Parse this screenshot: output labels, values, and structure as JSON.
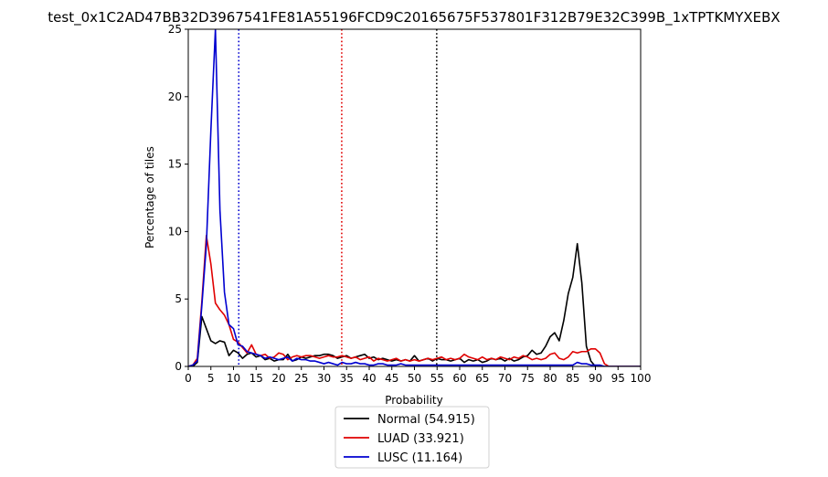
{
  "chart_data": {
    "type": "line",
    "title": "test_0x1C2AD47BB32D3967541FE81A55196FCD9C20165675F537801F312B79E32C399B_1xTPTKMYXEBX",
    "xlabel": "Probability",
    "ylabel": "Percentage of tiles",
    "xlim": [
      0,
      100
    ],
    "ylim": [
      0,
      25
    ],
    "xticks": [
      0,
      5,
      10,
      15,
      20,
      25,
      30,
      35,
      40,
      45,
      50,
      55,
      60,
      65,
      70,
      75,
      80,
      85,
      90,
      95,
      100
    ],
    "yticks": [
      0,
      5,
      10,
      15,
      20,
      25
    ],
    "grid": false,
    "legend_position": "bottom-center-outside",
    "series": [
      {
        "name": "Normal (54.915)",
        "color": "#000000",
        "x": [
          0,
          1,
          2,
          3,
          4,
          5,
          6,
          7,
          8,
          9,
          10,
          11,
          12,
          13,
          14,
          15,
          16,
          17,
          18,
          19,
          20,
          21,
          22,
          23,
          24,
          25,
          26,
          27,
          28,
          29,
          30,
          31,
          32,
          33,
          34,
          35,
          36,
          37,
          38,
          39,
          40,
          41,
          42,
          43,
          44,
          45,
          46,
          47,
          48,
          49,
          50,
          51,
          52,
          53,
          54,
          55,
          56,
          57,
          58,
          59,
          60,
          61,
          62,
          63,
          64,
          65,
          66,
          67,
          68,
          69,
          70,
          71,
          72,
          73,
          74,
          75,
          76,
          77,
          78,
          79,
          80,
          81,
          82,
          83,
          84,
          85,
          86,
          87,
          88,
          89,
          90,
          91,
          92,
          93,
          94,
          95,
          96,
          97,
          98,
          99,
          100
        ],
        "y": [
          0,
          0,
          0.3,
          3.7,
          2.8,
          1.9,
          1.7,
          1.9,
          1.8,
          0.8,
          1.2,
          1.0,
          0.6,
          0.9,
          1.0,
          0.7,
          0.8,
          0.5,
          0.6,
          0.4,
          0.5,
          0.5,
          0.9,
          0.4,
          0.5,
          0.7,
          0.6,
          0.7,
          0.8,
          0.8,
          0.9,
          0.9,
          0.8,
          0.6,
          0.7,
          0.8,
          0.6,
          0.7,
          0.8,
          0.9,
          0.6,
          0.7,
          0.5,
          0.6,
          0.5,
          0.4,
          0.5,
          0.4,
          0.5,
          0.4,
          0.8,
          0.4,
          0.5,
          0.6,
          0.4,
          0.6,
          0.5,
          0.5,
          0.4,
          0.5,
          0.6,
          0.3,
          0.5,
          0.4,
          0.5,
          0.3,
          0.4,
          0.6,
          0.5,
          0.6,
          0.4,
          0.6,
          0.4,
          0.5,
          0.7,
          0.8,
          1.2,
          0.9,
          1.0,
          1.5,
          2.2,
          2.5,
          1.9,
          3.4,
          5.4,
          6.6,
          9.1,
          6.2,
          1.5,
          0.4,
          0,
          0,
          0,
          0,
          0,
          0,
          0,
          0,
          0,
          0,
          0
        ]
      },
      {
        "name": "LUAD (33.921)",
        "color": "#e00000",
        "x": [
          0,
          1,
          2,
          3,
          4,
          5,
          6,
          7,
          8,
          9,
          10,
          11,
          12,
          13,
          14,
          15,
          16,
          17,
          18,
          19,
          20,
          21,
          22,
          23,
          24,
          25,
          26,
          27,
          28,
          29,
          30,
          31,
          32,
          33,
          34,
          35,
          36,
          37,
          38,
          39,
          40,
          41,
          42,
          43,
          44,
          45,
          46,
          47,
          48,
          49,
          50,
          51,
          52,
          53,
          54,
          55,
          56,
          57,
          58,
          59,
          60,
          61,
          62,
          63,
          64,
          65,
          66,
          67,
          68,
          69,
          70,
          71,
          72,
          73,
          74,
          75,
          76,
          77,
          78,
          79,
          80,
          81,
          82,
          83,
          84,
          85,
          86,
          87,
          88,
          89,
          90,
          91,
          92,
          93,
          94,
          95,
          96,
          97,
          98,
          99,
          100
        ],
        "y": [
          0,
          0.1,
          0.6,
          4.8,
          9.7,
          7.6,
          4.7,
          4.2,
          3.8,
          3.1,
          2.0,
          1.8,
          1.4,
          1.0,
          1.6,
          0.9,
          0.8,
          0.9,
          0.6,
          0.7,
          1.0,
          0.9,
          0.5,
          0.7,
          0.8,
          0.7,
          0.8,
          0.8,
          0.7,
          0.6,
          0.7,
          0.8,
          0.7,
          0.7,
          0.8,
          0.7,
          0.6,
          0.7,
          0.5,
          0.6,
          0.7,
          0.4,
          0.6,
          0.5,
          0.4,
          0.5,
          0.6,
          0.4,
          0.5,
          0.4,
          0.5,
          0.4,
          0.5,
          0.6,
          0.5,
          0.6,
          0.7,
          0.5,
          0.6,
          0.5,
          0.6,
          0.9,
          0.7,
          0.6,
          0.5,
          0.7,
          0.5,
          0.6,
          0.5,
          0.7,
          0.6,
          0.5,
          0.7,
          0.6,
          0.8,
          0.7,
          0.5,
          0.6,
          0.5,
          0.6,
          0.9,
          1.0,
          0.6,
          0.5,
          0.7,
          1.1,
          1.0,
          1.1,
          1.1,
          1.3,
          1.3,
          1.0,
          0.2,
          0,
          0,
          0,
          0,
          0,
          0,
          0,
          0
        ]
      },
      {
        "name": "LUSC (11.164)",
        "color": "#0000d0",
        "x": [
          0,
          1,
          2,
          3,
          4,
          5,
          6,
          7,
          8,
          9,
          10,
          11,
          12,
          13,
          14,
          15,
          16,
          17,
          18,
          19,
          20,
          21,
          22,
          23,
          24,
          25,
          26,
          27,
          28,
          29,
          30,
          31,
          32,
          33,
          34,
          35,
          36,
          37,
          38,
          39,
          40,
          41,
          42,
          43,
          44,
          45,
          46,
          47,
          48,
          49,
          50,
          51,
          52,
          53,
          54,
          55,
          56,
          57,
          58,
          59,
          60,
          61,
          62,
          63,
          64,
          65,
          66,
          67,
          68,
          69,
          70,
          71,
          72,
          73,
          74,
          75,
          76,
          77,
          78,
          79,
          80,
          81,
          82,
          83,
          84,
          85,
          86,
          87,
          88,
          89,
          90,
          91,
          92,
          93,
          94,
          95,
          96,
          97,
          98,
          99,
          100
        ],
        "y": [
          0,
          0.1,
          0.4,
          4.5,
          9.0,
          17.5,
          25.0,
          11.6,
          5.5,
          3.1,
          2.8,
          1.6,
          1.5,
          1.1,
          1.0,
          0.9,
          0.8,
          0.6,
          0.7,
          0.6,
          0.5,
          0.6,
          0.7,
          0.4,
          0.6,
          0.5,
          0.5,
          0.4,
          0.4,
          0.3,
          0.2,
          0.3,
          0.2,
          0.1,
          0.3,
          0.2,
          0.2,
          0.3,
          0.2,
          0.2,
          0.1,
          0.1,
          0.2,
          0.2,
          0.1,
          0.1,
          0.1,
          0.2,
          0.1,
          0.1,
          0.1,
          0.1,
          0.1,
          0.1,
          0.1,
          0.1,
          0.1,
          0.1,
          0.1,
          0.1,
          0.1,
          0.1,
          0.1,
          0.1,
          0.1,
          0.1,
          0.1,
          0.1,
          0.1,
          0.1,
          0.1,
          0.1,
          0.1,
          0.1,
          0.1,
          0.1,
          0.1,
          0.1,
          0.1,
          0.1,
          0.1,
          0.1,
          0.1,
          0.1,
          0.1,
          0.1,
          0.3,
          0.2,
          0.2,
          0.1,
          0.1,
          0.1,
          0,
          0,
          0,
          0,
          0,
          0,
          0,
          0,
          0
        ]
      }
    ],
    "vlines": [
      {
        "x": 11.164,
        "color": "#0000d0",
        "style": "dotted"
      },
      {
        "x": 33.921,
        "color": "#e00000",
        "style": "dotted"
      },
      {
        "x": 54.915,
        "color": "#000000",
        "style": "dotted"
      }
    ]
  }
}
